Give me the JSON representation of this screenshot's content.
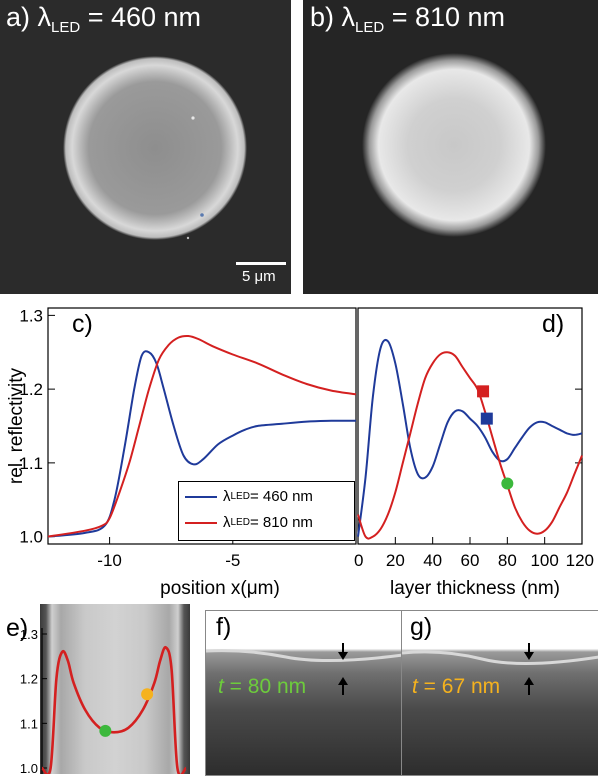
{
  "panel_a": {
    "label": "a)",
    "lambda": "λ",
    "sub": "LED",
    "value": " = 460 nm",
    "scalebar": "5 μm"
  },
  "panel_b": {
    "label": "b)",
    "lambda": "λ",
    "sub": "LED",
    "value": " = 810 nm"
  },
  "panel_c": {
    "label": "c)",
    "ylabel": "rel. reflectivity",
    "xlabel": "position x(μm)",
    "xticks": [
      "-10",
      "-5"
    ],
    "yticks": [
      "1.0",
      "1.1",
      "1.2",
      "1.3"
    ],
    "legend": [
      {
        "lambda": "λ",
        "sub": "LED",
        "value": " = 460 nm",
        "color": "#1f3a9a"
      },
      {
        "lambda": "λ",
        "sub": "LED",
        "value": " = 810 nm",
        "color": "#d42020"
      }
    ]
  },
  "panel_d": {
    "label": "d)",
    "xlabel": "layer thickness (nm)",
    "xticks": [
      "0",
      "20",
      "40",
      "60",
      "80",
      "100",
      "120"
    ]
  },
  "panel_e": {
    "label": "e)",
    "yticks": [
      "1.3",
      "1.2",
      "1.1",
      "1.0"
    ]
  },
  "panel_f": {
    "label": "f)",
    "t_label": "t",
    "t_value": " = 80 nm",
    "color": "#6dcc3c"
  },
  "panel_g": {
    "label": "g)",
    "t_label": "t",
    "t_value": " = 67 nm",
    "color": "#f5b21e"
  },
  "chart_data": [
    {
      "type": "line",
      "title": "",
      "xlabel": "position x(μm)",
      "ylabel": "rel. reflectivity",
      "xlim": [
        -12.5,
        0
      ],
      "ylim": [
        0.99,
        1.31
      ],
      "series": [
        {
          "name": "λLED = 460 nm",
          "color": "#1f3a9a",
          "x": [
            -12.5,
            -11,
            -10.2,
            -9.8,
            -9.4,
            -9.0,
            -8.7,
            -8.4,
            -8.1,
            -7.8,
            -7.4,
            -7.0,
            -6.6,
            -6.2,
            -5.6,
            -5.0,
            -4.5,
            -4.0,
            -3.0,
            -2.0,
            -1.0,
            0
          ],
          "y": [
            1.0,
            1.005,
            1.015,
            1.05,
            1.12,
            1.2,
            1.245,
            1.25,
            1.235,
            1.2,
            1.15,
            1.11,
            1.098,
            1.105,
            1.125,
            1.137,
            1.145,
            1.15,
            1.153,
            1.156,
            1.157,
            1.157
          ]
        },
        {
          "name": "λLED = 810 nm",
          "color": "#d42020",
          "x": [
            -12.5,
            -11,
            -10.3,
            -10.0,
            -9.6,
            -9.2,
            -8.8,
            -8.4,
            -8.0,
            -7.6,
            -7.2,
            -6.8,
            -6.4,
            -5.8,
            -5.0,
            -4.0,
            -3.0,
            -2.0,
            -1.0,
            0
          ],
          "y": [
            1.0,
            1.008,
            1.015,
            1.025,
            1.06,
            1.1,
            1.15,
            1.2,
            1.24,
            1.26,
            1.27,
            1.272,
            1.268,
            1.258,
            1.247,
            1.235,
            1.22,
            1.207,
            1.198,
            1.193
          ]
        }
      ]
    },
    {
      "type": "line",
      "title": "",
      "xlabel": "layer thickness (nm)",
      "xlim": [
        0,
        120
      ],
      "ylim": [
        0.99,
        1.31
      ],
      "series": [
        {
          "name": "λLED = 460 nm",
          "color": "#1f3a9a",
          "x": [
            0,
            4,
            8,
            12,
            16,
            20,
            24,
            28,
            32,
            36,
            40,
            44,
            48,
            52,
            56,
            60,
            64,
            68,
            72,
            76,
            80,
            84,
            88,
            92,
            96,
            100,
            104,
            108,
            112,
            116,
            120
          ],
          "y": [
            1.0,
            1.08,
            1.19,
            1.255,
            1.265,
            1.235,
            1.18,
            1.12,
            1.085,
            1.08,
            1.095,
            1.125,
            1.155,
            1.17,
            1.17,
            1.16,
            1.15,
            1.135,
            1.115,
            1.103,
            1.105,
            1.12,
            1.135,
            1.148,
            1.155,
            1.155,
            1.15,
            1.145,
            1.14,
            1.138,
            1.14
          ]
        },
        {
          "name": "λLED = 810 nm",
          "color": "#d42020",
          "x": [
            0,
            4,
            8,
            12,
            16,
            20,
            24,
            28,
            32,
            36,
            40,
            44,
            48,
            52,
            56,
            60,
            64,
            68,
            72,
            76,
            80,
            84,
            88,
            92,
            96,
            100,
            104,
            108,
            112,
            116,
            120
          ],
          "y": [
            1.03,
            1.0,
            1.0,
            1.01,
            1.03,
            1.06,
            1.1,
            1.14,
            1.18,
            1.215,
            1.235,
            1.247,
            1.25,
            1.245,
            1.23,
            1.215,
            1.2,
            1.17,
            1.135,
            1.1,
            1.07,
            1.04,
            1.02,
            1.008,
            1.004,
            1.008,
            1.02,
            1.04,
            1.06,
            1.085,
            1.11
          ]
        }
      ],
      "markers": [
        {
          "shape": "square",
          "color": "#d42020",
          "x": 67,
          "y": 1.197
        },
        {
          "shape": "square",
          "color": "#1f3a9a",
          "x": 69,
          "y": 1.16
        },
        {
          "shape": "circle",
          "color": "#3cb83c",
          "x": 80,
          "y": 1.072
        }
      ]
    },
    {
      "type": "line",
      "title": "",
      "ylim": [
        1.0,
        1.3
      ],
      "series": [
        {
          "name": "",
          "color": "#d42020",
          "x": [
            0,
            0.06,
            0.1,
            0.14,
            0.18,
            0.22,
            0.3,
            0.4,
            0.5,
            0.6,
            0.7,
            0.78,
            0.82,
            0.86,
            0.9,
            0.94,
            1.0
          ],
          "y": [
            1.0,
            1.0,
            1.2,
            1.26,
            1.24,
            1.19,
            1.13,
            1.09,
            1.08,
            1.09,
            1.13,
            1.19,
            1.24,
            1.27,
            1.22,
            1.0,
            1.0
          ]
        }
      ],
      "markers": [
        {
          "shape": "circle",
          "color": "#3cb83c",
          "x": 0.44,
          "y": 1.083
        },
        {
          "shape": "circle",
          "color": "#f5b21e",
          "x": 0.73,
          "y": 1.165
        }
      ]
    }
  ]
}
